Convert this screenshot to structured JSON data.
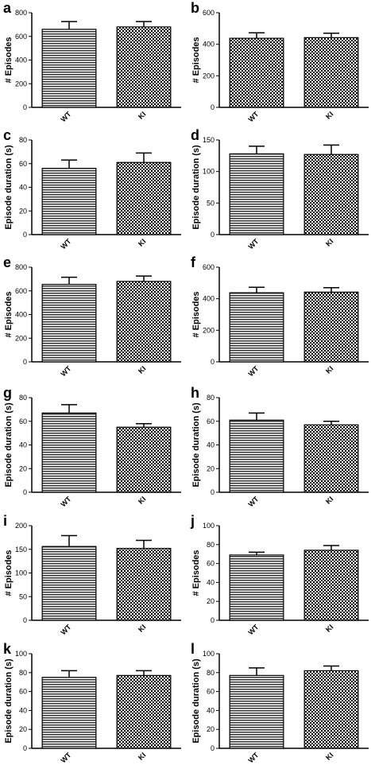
{
  "chart_data": [
    {
      "panel": "a",
      "type": "bar",
      "categories": [
        "WT",
        "KI"
      ],
      "values": [
        660,
        680
      ],
      "errors": [
        65,
        45
      ],
      "ylabel": "# Episodes",
      "ylim": [
        0,
        800
      ],
      "yticks": [
        0,
        200,
        400,
        600,
        800
      ],
      "patterns": [
        "wt",
        "ki"
      ]
    },
    {
      "panel": "b",
      "type": "bar",
      "categories": [
        "WT",
        "KI"
      ],
      "values": [
        438,
        442
      ],
      "errors": [
        35,
        28
      ],
      "ylabel": "# Episodes",
      "ylim": [
        0,
        600
      ],
      "yticks": [
        0,
        200,
        400,
        600
      ],
      "patterns": [
        "ki",
        "ki"
      ]
    },
    {
      "panel": "c",
      "type": "bar",
      "categories": [
        "WT",
        "KI"
      ],
      "values": [
        56,
        61
      ],
      "errors": [
        7,
        8
      ],
      "ylabel": "Episode duration (s)",
      "ylim": [
        0,
        80
      ],
      "yticks": [
        0,
        20,
        40,
        60,
        80
      ],
      "patterns": [
        "wt",
        "ki"
      ]
    },
    {
      "panel": "d",
      "type": "bar",
      "categories": [
        "WT",
        "KI"
      ],
      "values": [
        128,
        127
      ],
      "errors": [
        12,
        15
      ],
      "ylabel": "Episode duration (s)",
      "ylim": [
        0,
        150
      ],
      "yticks": [
        0,
        50,
        100,
        150
      ],
      "patterns": [
        "wt",
        "ki"
      ]
    },
    {
      "panel": "e",
      "type": "bar",
      "categories": [
        "WT",
        "KI"
      ],
      "values": [
        655,
        680
      ],
      "errors": [
        60,
        45
      ],
      "ylabel": "# Episodes",
      "ylim": [
        0,
        800
      ],
      "yticks": [
        0,
        200,
        400,
        600,
        800
      ],
      "patterns": [
        "wt",
        "ki"
      ]
    },
    {
      "panel": "f",
      "type": "bar",
      "categories": [
        "WT",
        "KI"
      ],
      "values": [
        438,
        442
      ],
      "errors": [
        35,
        28
      ],
      "ylabel": "# Episodes",
      "ylim": [
        0,
        600
      ],
      "yticks": [
        0,
        200,
        400,
        600
      ],
      "patterns": [
        "wt",
        "ki"
      ]
    },
    {
      "panel": "g",
      "type": "bar",
      "categories": [
        "WT",
        "KI"
      ],
      "values": [
        67,
        55
      ],
      "errors": [
        7,
        3
      ],
      "ylabel": "Episode duration (s)",
      "ylim": [
        0,
        80
      ],
      "yticks": [
        0,
        20,
        40,
        60,
        80
      ],
      "patterns": [
        "wt",
        "ki"
      ]
    },
    {
      "panel": "h",
      "type": "bar",
      "categories": [
        "WT",
        "KI"
      ],
      "values": [
        61,
        57
      ],
      "errors": [
        6,
        3
      ],
      "ylabel": "Episode duration (s)",
      "ylim": [
        0,
        80
      ],
      "yticks": [
        0,
        20,
        40,
        60,
        80
      ],
      "patterns": [
        "wt",
        "ki"
      ]
    },
    {
      "panel": "i",
      "type": "bar",
      "categories": [
        "WT",
        "KI"
      ],
      "values": [
        156,
        152
      ],
      "errors": [
        23,
        17
      ],
      "ylabel": "# Episodes",
      "ylim": [
        0,
        200
      ],
      "yticks": [
        0,
        50,
        100,
        150,
        200
      ],
      "patterns": [
        "wt",
        "ki"
      ]
    },
    {
      "panel": "j",
      "type": "bar",
      "categories": [
        "WT",
        "KI"
      ],
      "values": [
        69,
        74
      ],
      "errors": [
        3,
        5
      ],
      "ylabel": "# Episodes",
      "ylim": [
        0,
        100
      ],
      "yticks": [
        0,
        20,
        40,
        60,
        80,
        100
      ],
      "patterns": [
        "wt",
        "ki"
      ]
    },
    {
      "panel": "k",
      "type": "bar",
      "categories": [
        "WT",
        "KI"
      ],
      "values": [
        75,
        77
      ],
      "errors": [
        7,
        5
      ],
      "ylabel": "Episode duration (s)",
      "ylim": [
        0,
        100
      ],
      "yticks": [
        0,
        20,
        40,
        60,
        80,
        100
      ],
      "patterns": [
        "wt",
        "ki"
      ]
    },
    {
      "panel": "l",
      "type": "bar",
      "categories": [
        "WT",
        "KI"
      ],
      "values": [
        77,
        82
      ],
      "errors": [
        8,
        5
      ],
      "ylabel": "Episode duration (s)",
      "ylim": [
        0,
        100
      ],
      "yticks": [
        0,
        20,
        40,
        60,
        80,
        100
      ],
      "patterns": [
        "wt",
        "ki"
      ]
    }
  ],
  "colors": {
    "bar_fill": "#000000",
    "background": "#ffffff",
    "axis": "#000000"
  }
}
